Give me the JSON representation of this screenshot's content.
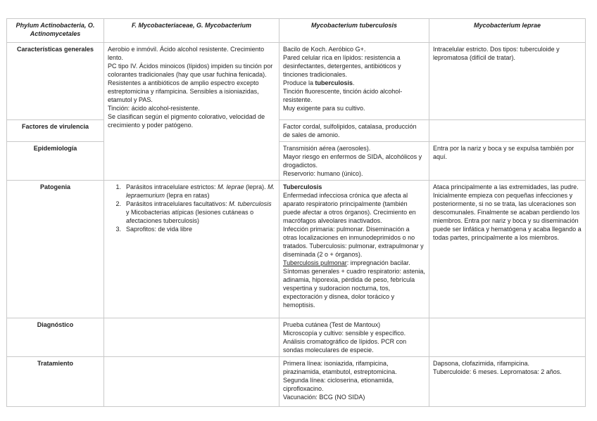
{
  "table": {
    "headers": [
      "Phylum Actinobacteria, O. Actinomycetales",
      "F. Mycobacteriaceae, G. Mycobacterium",
      "Mycobacterium tuberculosis",
      "Mycobacterium leprae"
    ],
    "row_labels": [
      "Características generales",
      "Factores de virulencia",
      "Epidemiología",
      "Patogenia",
      "Diagnóstico",
      "Tratamiento"
    ],
    "cells": {
      "genus_general": [
        {
          "runs": [
            {
              "t": "Aerobio e inmóvil. Ácido alcohol resistente. Crecimiento lento."
            }
          ]
        },
        {
          "runs": [
            {
              "t": "PC tipo IV. Ácidos minoicos (lípidos) impiden su tinción por colorantes tradicionales (hay que usar fuchina fenicada)."
            }
          ]
        },
        {
          "runs": [
            {
              "t": "Resistentes a antibióticos de amplio espectro excepto estreptomicina y rifampicina. Sensibles a isioniazidas, etamutol y PAS."
            }
          ]
        },
        {
          "runs": [
            {
              "t": "Tinción: ácido alcohol-resistente."
            }
          ]
        },
        {
          "runs": [
            {
              "t": "Se clasifican según el pigmento colorativo, velocidad de crecimiento y poder patógeno."
            }
          ]
        }
      ],
      "tb_general": [
        {
          "runs": [
            {
              "t": "Bacilo de Koch. Aeróbico G+."
            }
          ]
        },
        {
          "runs": [
            {
              "t": "Pared celular rica en lípidos: resistencia a desinfectantes, detergentes, antibióticos y tinciones tradicionales."
            }
          ]
        },
        {
          "runs": [
            {
              "t": "Produce la "
            },
            {
              "t": "tuberculosis",
              "b": true
            },
            {
              "t": "."
            }
          ]
        },
        {
          "runs": [
            {
              "t": "Tinción fluorescente, tinción ácido alcohol-resistente."
            }
          ]
        },
        {
          "runs": [
            {
              "t": "Muy exigente para su cultivo."
            }
          ]
        }
      ],
      "leprae_general": [
        {
          "runs": [
            {
              "t": "Intracelular estricto. Dos tipos: tuberculoide y lepromatosa (difícil de tratar)."
            }
          ]
        }
      ],
      "tb_virulencia": [
        {
          "runs": [
            {
              "t": "Factor cordal, sulfolipidos, catalasa, producción de sales de amonio."
            }
          ]
        }
      ],
      "tb_epidemiologia": [
        {
          "runs": [
            {
              "t": "Transmisión aérea (aerosoles)."
            }
          ]
        },
        {
          "runs": [
            {
              "t": "Mayor riesgo en enfermos de SIDA, alcohólicos y drogadictos."
            }
          ]
        },
        {
          "runs": [
            {
              "t": "Reservorio: humano (único)."
            }
          ]
        }
      ],
      "leprae_epidemiologia": [
        {
          "runs": [
            {
              "t": "Entra por la nariz y boca y se expulsa también por aquí."
            }
          ]
        }
      ],
      "genus_patogenia": [
        {
          "num": "1.",
          "runs": [
            {
              "t": "Parásitos intracelulare estrictos: "
            },
            {
              "t": "M. leprae",
              "i": true
            },
            {
              "t": " (lepra). "
            },
            {
              "t": "M. lepraemurium",
              "i": true
            },
            {
              "t": " (lepra en ratas)"
            }
          ]
        },
        {
          "num": "2.",
          "runs": [
            {
              "t": "Parásitos intracelulares facultativos: "
            },
            {
              "t": "M. tuberculosis",
              "i": true
            },
            {
              "t": " y Micobacterias atípicas (lesiones cutáneas o afectaciones tuberculosis)"
            }
          ]
        },
        {
          "num": "3.",
          "runs": [
            {
              "t": "Saprofitos: de vida libre"
            }
          ]
        }
      ],
      "tb_patogenia": [
        {
          "runs": [
            {
              "t": "Tuberculosis",
              "b": true
            }
          ]
        },
        {
          "runs": [
            {
              "t": "Enfermedad infecciosa crónica que afecta al aparato respiratorio principalmente (también puede afectar a otros órganos). Crecimiento en macrófagos alveolares inactivados."
            }
          ]
        },
        {
          "runs": [
            {
              "t": "Infección primaria: pulmonar. Diseminación a otras localizaciones en inmunodeprimidos o no tratados. Tuberculosis: pulmonar, extrapulmonar y diseminada (2 o + órganos)."
            }
          ]
        },
        {
          "runs": [
            {
              "t": "Tuberculosis pulmonar",
              "u": true
            },
            {
              "t": ": impregnación bacilar."
            }
          ]
        },
        {
          "runs": [
            {
              "t": "Síntomas generales + cuadro respiratorio: astenia, adinamia, hiporexia, pérdida de peso, febrícula vespertina y sudoracion nocturna, tos, expectoración y disnea, dolor torácico y hemoptisis."
            }
          ]
        }
      ],
      "leprae_patogenia": [
        {
          "runs": [
            {
              "t": "Ataca principalmente a las extremidades, las pudre."
            }
          ]
        },
        {
          "runs": [
            {
              "t": "Inicialmente empieza con pequeñas infecciones y posteriormente, si no se trata, las ulceraciones son descomunales. Finalmente se acaban perdiendo los miembros. Entra por nariz y boca y su diseminación puede ser linfática y hematógena y acaba llegando a todas partes, principalmente a los miembros."
            }
          ]
        }
      ],
      "tb_diagnostico": [
        {
          "runs": [
            {
              "t": "Prueba cutánea (Test de Mantoux)"
            }
          ]
        },
        {
          "runs": [
            {
              "t": "Microscopía y cultivo: sensible y específico."
            }
          ]
        },
        {
          "runs": [
            {
              "t": "Análisis cromatográfico de lípidos. PCR con sondas moleculares de especie."
            }
          ]
        }
      ],
      "tb_tratamiento": [
        {
          "runs": [
            {
              "t": "Primera línea: isoniazida, rifampicina, pirazinamida, etambutol, estreptomicina."
            }
          ]
        },
        {
          "runs": [
            {
              "t": "Segunda línea: cicloserina, etionamida, ciprofloxacino."
            }
          ]
        },
        {
          "runs": [
            {
              "t": "Vacunación: BCG (NO SIDA)"
            }
          ]
        }
      ],
      "leprae_tratamiento": [
        {
          "runs": [
            {
              "t": "Dapsona, clofazimida, rifampicina."
            }
          ]
        },
        {
          "runs": [
            {
              "t": "Tuberculoide: 6 meses. Lepromatosa: 2 años."
            }
          ]
        }
      ]
    }
  }
}
